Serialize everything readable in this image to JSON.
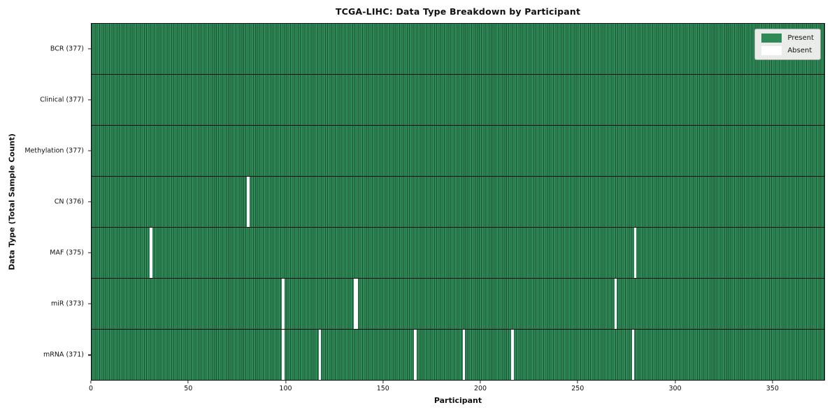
{
  "chart_data": {
    "type": "heatmap",
    "title": "TCGA-LIHC: Data Type Breakdown by Participant",
    "xlabel": "Participant",
    "ylabel": "Data Type (Total Sample Count)",
    "x_range": [
      0,
      377
    ],
    "n_participants": 377,
    "x_ticks": [
      0,
      50,
      100,
      150,
      200,
      250,
      300,
      350
    ],
    "grid": false,
    "legend_position": "upper right",
    "legend": [
      {
        "label": "Present",
        "value": "present"
      },
      {
        "label": "Absent",
        "value": "absent"
      }
    ],
    "rows": [
      {
        "label": "BCR (377)",
        "data_type": "BCR",
        "total_sample_count": 377,
        "absent_participants": []
      },
      {
        "label": "Clinical (377)",
        "data_type": "Clinical",
        "total_sample_count": 377,
        "absent_participants": []
      },
      {
        "label": "Methylation (377)",
        "data_type": "Methylation",
        "total_sample_count": 377,
        "absent_participants": []
      },
      {
        "label": "CN (376)",
        "data_type": "CN",
        "total_sample_count": 376,
        "absent_participants": [
          80
        ]
      },
      {
        "label": "MAF (375)",
        "data_type": "MAF",
        "total_sample_count": 375,
        "absent_participants": [
          30,
          279
        ]
      },
      {
        "label": "miR (373)",
        "data_type": "miR",
        "total_sample_count": 373,
        "absent_participants": [
          98,
          135,
          136,
          269
        ]
      },
      {
        "label": "mRNA (371)",
        "data_type": "mRNA",
        "total_sample_count": 371,
        "absent_participants": [
          98,
          117,
          166,
          191,
          216,
          278
        ]
      }
    ]
  },
  "colors": {
    "present": "#2e8b57",
    "absent": "#ffffff",
    "cell_edge": "#1d5336",
    "row_divider": "#0d0d0d",
    "tick": "#222222",
    "legend_bg": "#e9ece9",
    "legend_border": "#a9aea9"
  }
}
